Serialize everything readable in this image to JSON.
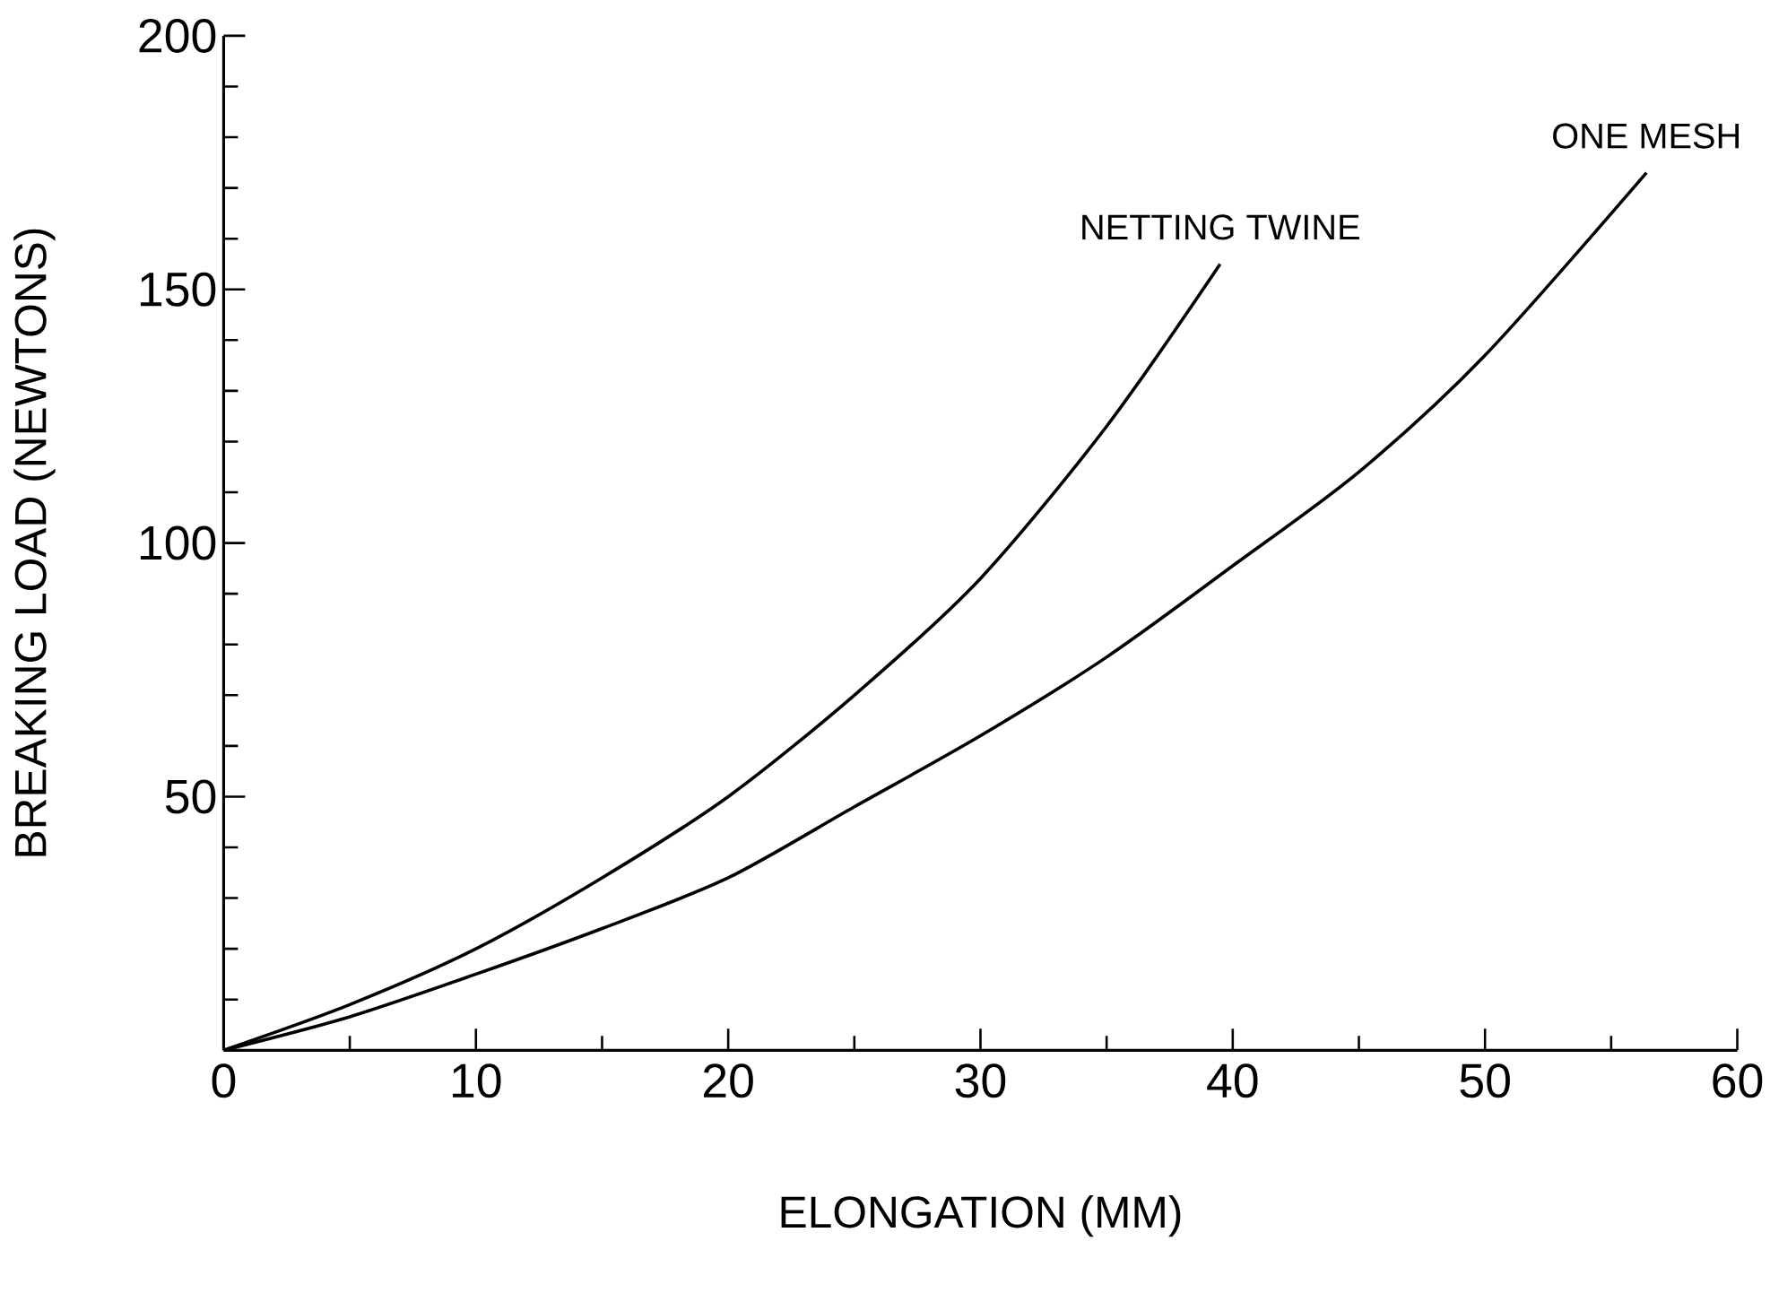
{
  "chart_data": {
    "type": "line",
    "xlabel": "ELONGATION (MM)",
    "ylabel": "BREAKING LOAD (NEWTONS)",
    "xlim": [
      0,
      60
    ],
    "ylim": [
      0,
      200
    ],
    "xticks": [
      0,
      {
        "value": 5,
        "label": null
      },
      10,
      {
        "value": 15,
        "label": null
      },
      20,
      {
        "value": 25,
        "label": null
      },
      30,
      {
        "value": 35,
        "label": null
      },
      40,
      {
        "value": 45,
        "label": null
      },
      50,
      {
        "value": 55,
        "label": null
      },
      60
    ],
    "yticks": [
      {
        "value": 10,
        "label": null
      },
      {
        "value": 20,
        "label": null
      },
      {
        "value": 30,
        "label": null
      },
      {
        "value": 40,
        "label": null
      },
      50,
      {
        "value": 60,
        "label": null
      },
      {
        "value": 70,
        "label": null
      },
      {
        "value": 80,
        "label": null
      },
      {
        "value": 90,
        "label": null
      },
      100,
      {
        "value": 110,
        "label": null
      },
      {
        "value": 120,
        "label": null
      },
      {
        "value": 130,
        "label": null
      },
      {
        "value": 140,
        "label": null
      },
      150,
      {
        "value": 160,
        "label": null
      },
      {
        "value": 170,
        "label": null
      },
      {
        "value": 180,
        "label": null
      },
      {
        "value": 190,
        "label": null
      },
      200
    ],
    "grid": false,
    "legend": false,
    "series": [
      {
        "name": "NETTING TWINE",
        "color": "#000000",
        "x": [
          0,
          5,
          10,
          15,
          20,
          25,
          30,
          35,
          39.5
        ],
        "values": [
          0,
          9,
          20,
          34,
          50,
          70,
          93,
          123,
          155
        ]
      },
      {
        "name": "ONE MESH",
        "color": "#000000",
        "x": [
          0,
          5,
          10,
          15,
          20,
          25,
          30,
          35,
          40,
          45,
          50,
          56.4
        ],
        "values": [
          0,
          6.6,
          15,
          24,
          34,
          48,
          62,
          77.5,
          95.5,
          114,
          137,
          173
        ]
      }
    ]
  }
}
